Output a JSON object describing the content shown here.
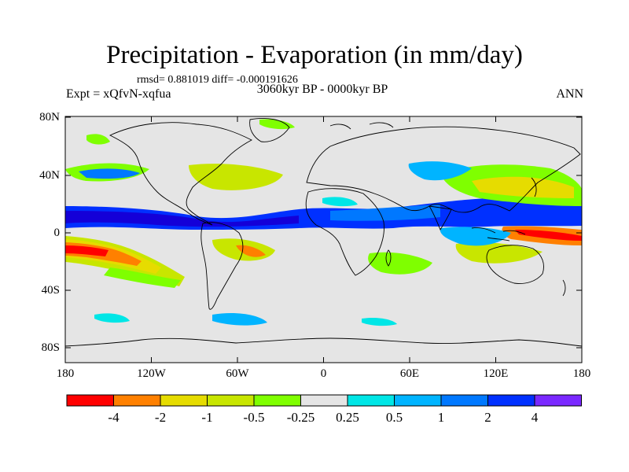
{
  "title": "Precipitation - Evaporation (in mm/day)",
  "stats": "rmsd= 0.881019 diff= -0.000191626",
  "period": "3060kyr BP - 0000kyr BP",
  "experiment": "Expt = xQfvN-xqfua",
  "season": "ANN",
  "lat_labels": [
    "80N",
    "40N",
    "0",
    "40S",
    "80S"
  ],
  "lon_labels": [
    "180",
    "120W",
    "60W",
    "0",
    "60E",
    "120E",
    "180"
  ],
  "colorbar": {
    "labels": [
      "-4",
      "-2",
      "-1",
      "-0.5",
      "-0.25",
      "0.25",
      "0.5",
      "1",
      "2",
      "4"
    ],
    "colors": [
      "#ff0000",
      "#ff8000",
      "#e6dc00",
      "#c8e600",
      "#7fff00",
      "#10e010",
      "#e5e5e5",
      "#00e6e6",
      "#00b4ff",
      "#0078ff",
      "#0030ff",
      "#1400d8",
      "#7a28ff"
    ]
  }
}
